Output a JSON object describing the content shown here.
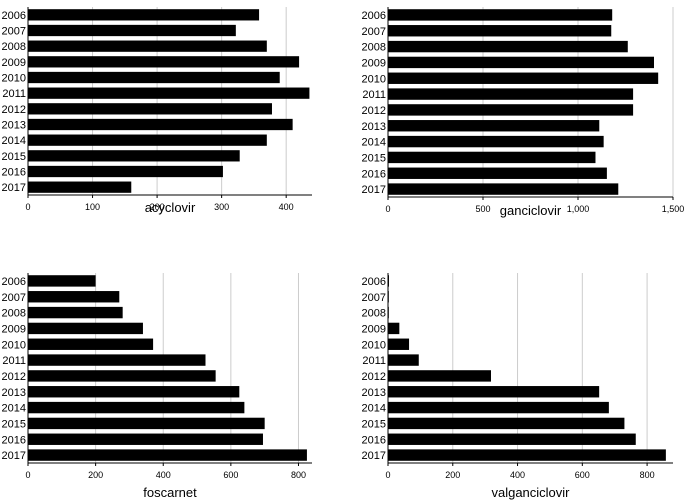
{
  "chart_data": [
    {
      "type": "bar",
      "orientation": "horizontal",
      "xlabel": "acyclovir",
      "categories": [
        "2006",
        "2007",
        "2008",
        "2009",
        "2010",
        "2011",
        "2012",
        "2013",
        "2014",
        "2015",
        "2016",
        "2017"
      ],
      "values": [
        358,
        322,
        370,
        420,
        390,
        436,
        378,
        410,
        370,
        328,
        302,
        160
      ],
      "xlim": [
        0,
        440
      ],
      "ticks": [
        0,
        100,
        200,
        300,
        400
      ],
      "tick_labels": [
        "0",
        "100",
        "200",
        "300",
        "400"
      ],
      "grid": true
    },
    {
      "type": "bar",
      "orientation": "horizontal",
      "xlabel": "ganciclovir",
      "categories": [
        "2006",
        "2007",
        "2008",
        "2009",
        "2010",
        "2011",
        "2012",
        "2013",
        "2014",
        "2015",
        "2016",
        "2017"
      ],
      "values": [
        1180,
        1175,
        1262,
        1400,
        1422,
        1290,
        1290,
        1112,
        1135,
        1092,
        1152,
        1212
      ],
      "xlim": [
        0,
        1500
      ],
      "ticks": [
        0,
        500,
        1000,
        1500
      ],
      "tick_labels": [
        "0",
        "500",
        "1,000",
        "1,500"
      ],
      "grid": true
    },
    {
      "type": "bar",
      "orientation": "horizontal",
      "xlabel": "foscarnet",
      "categories": [
        "2006",
        "2007",
        "2008",
        "2009",
        "2010",
        "2011",
        "2012",
        "2013",
        "2014",
        "2015",
        "2016",
        "2017"
      ],
      "values": [
        200,
        270,
        280,
        340,
        370,
        525,
        555,
        625,
        640,
        700,
        695,
        825
      ],
      "xlim": [
        0,
        840
      ],
      "ticks": [
        0,
        200,
        400,
        600,
        800
      ],
      "tick_labels": [
        "0",
        "200",
        "400",
        "600",
        "800"
      ],
      "grid": true
    },
    {
      "type": "bar",
      "orientation": "horizontal",
      "xlabel": "valganciclovir",
      "categories": [
        "2006",
        "2007",
        "2008",
        "2009",
        "2010",
        "2011",
        "2012",
        "2013",
        "2014",
        "2015",
        "2016",
        "2017"
      ],
      "values": [
        3,
        2,
        2,
        35,
        65,
        95,
        318,
        652,
        682,
        730,
        765,
        858
      ],
      "xlim": [
        0,
        880
      ],
      "ticks": [
        0,
        200,
        400,
        600,
        800
      ],
      "tick_labels": [
        "0",
        "200",
        "400",
        "600",
        "800"
      ],
      "grid": true
    }
  ],
  "colors": {
    "bar": "#000000",
    "grid": "#cccccc",
    "axis": "#000000"
  }
}
